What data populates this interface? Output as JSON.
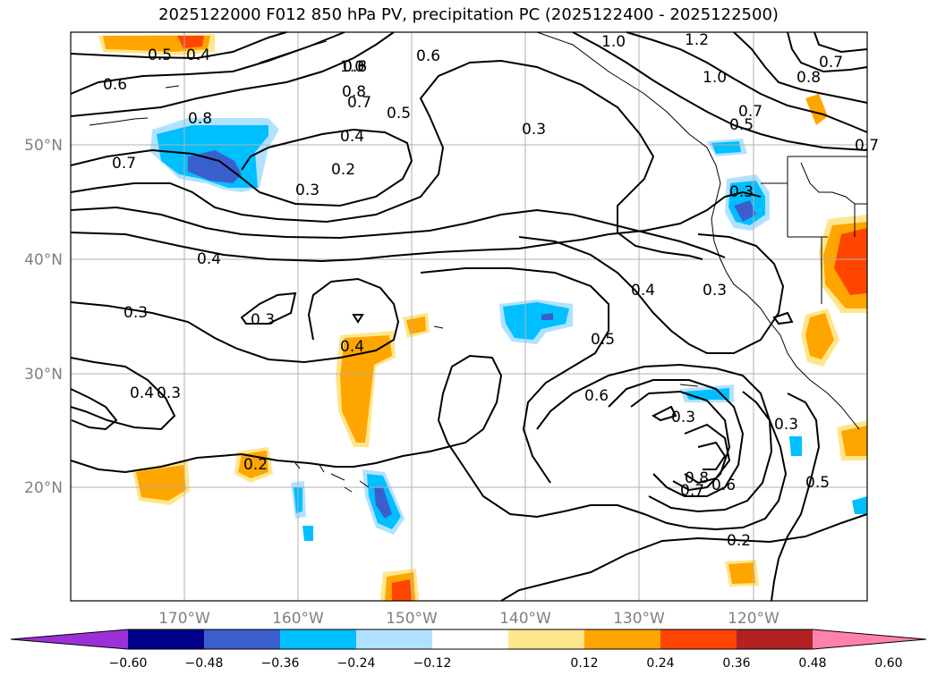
{
  "title": "2025122000 F012 850 hPa PV, precipitation PC (2025122400 - 2025122500)",
  "map": {
    "lon_labels": [
      "170°W",
      "160°W",
      "150°W",
      "140°W",
      "130°W",
      "120°W"
    ],
    "lat_labels": [
      "50°N",
      "40°N",
      "30°N",
      "20°N"
    ],
    "contour_labels": [
      "0.5",
      "0.4",
      "0.6",
      "0.7",
      "1.0",
      "0.8",
      "0.7",
      "0.5",
      "0.6",
      "1.0",
      "1.2",
      "1.0",
      "0.7",
      "0.8",
      "0.7",
      "0.5",
      "0.8",
      "0.4",
      "0.2",
      "0.3",
      "0.3",
      "0.7",
      "0.3",
      "0.4",
      "0.3",
      "0.3",
      "0.4",
      "0.5",
      "0.3",
      "0.4",
      "0.3",
      "0.4",
      "0.6",
      "0.3",
      "0.2",
      "0.8",
      "0.7",
      "0.6",
      "0.3",
      "0.5",
      "0.2",
      "0.8",
      "0.6"
    ]
  },
  "colorbar": {
    "colors": [
      "#9b30d9",
      "#00008b",
      "#3a5fcd",
      "#00bfff",
      "#b0e2ff",
      "#ffffff",
      "#fee68c",
      "#ffa500",
      "#ff4500",
      "#b22222",
      "#ff82ab"
    ],
    "tick_labels": [
      "−0.60",
      "−0.48",
      "−0.36",
      "−0.24",
      "−0.12",
      "0.12",
      "0.24",
      "0.36",
      "0.48",
      "0.60"
    ]
  }
}
